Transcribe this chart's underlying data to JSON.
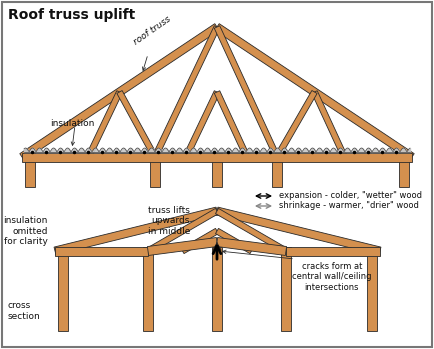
{
  "title": "Roof truss uplift",
  "wood_color": "#D4904E",
  "outline_color": "#2A2A2A",
  "bg_color": "#FFFFFF",
  "border_color": "#777777",
  "text_color": "#111111",
  "legend1_text": "expansion - colder, \"wetter\" wood",
  "legend2_text": "shrinkage - warmer, \"drier\" wood",
  "label_roof_truss": "roof truss",
  "label_insulation": "insulation",
  "label_truss_lifts": "truss lifts\nupwards\nin middle",
  "label_insulation_omitted": "insulation\nomitted\nfor clarity",
  "label_cross_section": "cross\nsection",
  "label_cracks": "cracks form at\ncentral wall/ceiling\nintersections"
}
